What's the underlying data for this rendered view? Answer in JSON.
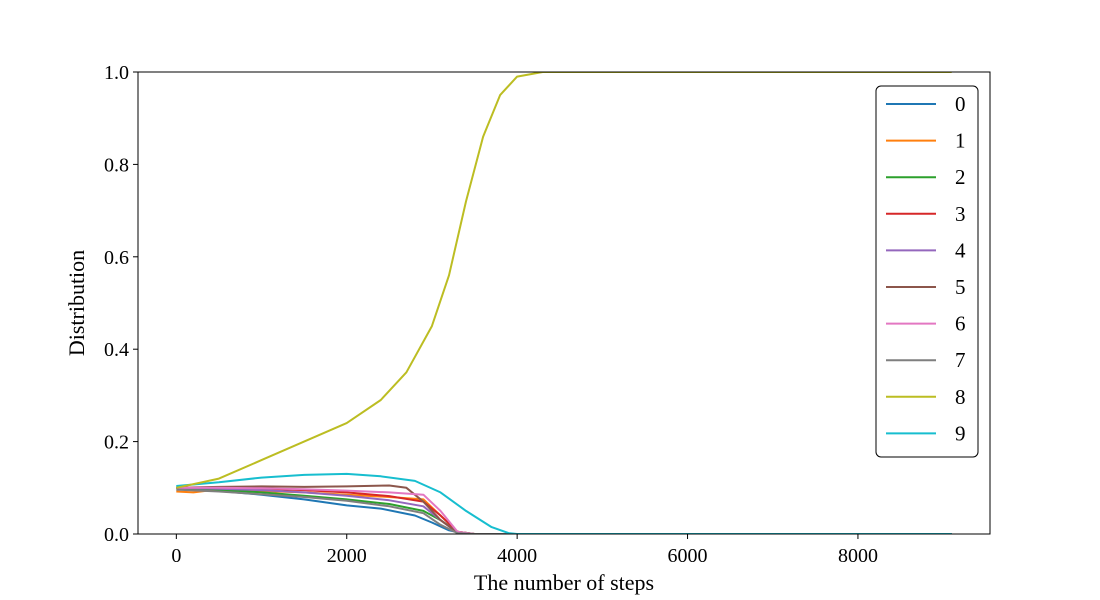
{
  "chart_data": {
    "type": "line",
    "title": "",
    "xlabel": "The number of steps",
    "ylabel": "Distribution",
    "xlim": [
      -450,
      9550
    ],
    "ylim": [
      0.0,
      1.0
    ],
    "xticks": [
      0,
      2000,
      4000,
      6000,
      8000
    ],
    "xtick_labels": [
      "0",
      "2000",
      "4000",
      "6000",
      "8000"
    ],
    "yticks": [
      0.0,
      0.2,
      0.4,
      0.6,
      0.8,
      1.0
    ],
    "ytick_labels": [
      "0.0",
      "0.2",
      "0.4",
      "0.6",
      "0.8",
      "1.0"
    ],
    "grid": false,
    "legend_position": "upper right",
    "x_max_step": 9100,
    "series": [
      {
        "name": "0",
        "color": "#1f77b4",
        "points": [
          [
            0,
            0.1
          ],
          [
            500,
            0.093
          ],
          [
            1000,
            0.085
          ],
          [
            1500,
            0.075
          ],
          [
            2000,
            0.062
          ],
          [
            2400,
            0.055
          ],
          [
            2800,
            0.04
          ],
          [
            3000,
            0.025
          ],
          [
            3200,
            0.008
          ],
          [
            3400,
            0.0
          ],
          [
            9100,
            0.0
          ]
        ]
      },
      {
        "name": "1",
        "color": "#ff7f0e",
        "points": [
          [
            0,
            0.092
          ],
          [
            200,
            0.09
          ],
          [
            500,
            0.097
          ],
          [
            1000,
            0.093
          ],
          [
            1500,
            0.09
          ],
          [
            2000,
            0.085
          ],
          [
            2500,
            0.08
          ],
          [
            2900,
            0.075
          ],
          [
            3100,
            0.04
          ],
          [
            3300,
            0.005
          ],
          [
            3500,
            0.0
          ],
          [
            9100,
            0.0
          ]
        ]
      },
      {
        "name": "2",
        "color": "#2ca02c",
        "points": [
          [
            0,
            0.1
          ],
          [
            500,
            0.096
          ],
          [
            1000,
            0.09
          ],
          [
            1500,
            0.083
          ],
          [
            2000,
            0.075
          ],
          [
            2500,
            0.065
          ],
          [
            2900,
            0.05
          ],
          [
            3100,
            0.03
          ],
          [
            3300,
            0.005
          ],
          [
            3500,
            0.0
          ],
          [
            9100,
            0.0
          ]
        ]
      },
      {
        "name": "3",
        "color": "#d62728",
        "points": [
          [
            0,
            0.1
          ],
          [
            500,
            0.1
          ],
          [
            1000,
            0.098
          ],
          [
            1500,
            0.095
          ],
          [
            2000,
            0.09
          ],
          [
            2500,
            0.082
          ],
          [
            2900,
            0.07
          ],
          [
            3100,
            0.04
          ],
          [
            3300,
            0.005
          ],
          [
            3500,
            0.0
          ],
          [
            9100,
            0.0
          ]
        ]
      },
      {
        "name": "4",
        "color": "#9467bd",
        "points": [
          [
            0,
            0.1
          ],
          [
            500,
            0.098
          ],
          [
            1000,
            0.095
          ],
          [
            1500,
            0.09
          ],
          [
            2000,
            0.083
          ],
          [
            2500,
            0.073
          ],
          [
            2900,
            0.06
          ],
          [
            3100,
            0.03
          ],
          [
            3300,
            0.003
          ],
          [
            3500,
            0.0
          ],
          [
            9100,
            0.0
          ]
        ]
      },
      {
        "name": "5",
        "color": "#8c564b",
        "points": [
          [
            0,
            0.1
          ],
          [
            500,
            0.102
          ],
          [
            1000,
            0.103
          ],
          [
            1500,
            0.102
          ],
          [
            2000,
            0.103
          ],
          [
            2500,
            0.105
          ],
          [
            2700,
            0.1
          ],
          [
            2900,
            0.07
          ],
          [
            3100,
            0.03
          ],
          [
            3300,
            0.003
          ],
          [
            3500,
            0.0
          ],
          [
            9100,
            0.0
          ]
        ]
      },
      {
        "name": "6",
        "color": "#e377c2",
        "points": [
          [
            0,
            0.1
          ],
          [
            500,
            0.1
          ],
          [
            1000,
            0.099
          ],
          [
            1500,
            0.097
          ],
          [
            2000,
            0.094
          ],
          [
            2500,
            0.09
          ],
          [
            2900,
            0.085
          ],
          [
            3100,
            0.05
          ],
          [
            3300,
            0.005
          ],
          [
            3500,
            0.0
          ],
          [
            9100,
            0.0
          ]
        ]
      },
      {
        "name": "7",
        "color": "#7f7f7f",
        "points": [
          [
            0,
            0.096
          ],
          [
            500,
            0.092
          ],
          [
            1000,
            0.086
          ],
          [
            1500,
            0.08
          ],
          [
            2000,
            0.072
          ],
          [
            2500,
            0.06
          ],
          [
            2900,
            0.045
          ],
          [
            3100,
            0.02
          ],
          [
            3300,
            0.002
          ],
          [
            3500,
            0.0
          ],
          [
            9100,
            0.0
          ]
        ]
      },
      {
        "name": "8",
        "color": "#bcbd22",
        "points": [
          [
            0,
            0.1
          ],
          [
            500,
            0.12
          ],
          [
            1000,
            0.16
          ],
          [
            1500,
            0.2
          ],
          [
            2000,
            0.24
          ],
          [
            2400,
            0.29
          ],
          [
            2700,
            0.35
          ],
          [
            3000,
            0.45
          ],
          [
            3200,
            0.56
          ],
          [
            3400,
            0.72
          ],
          [
            3600,
            0.86
          ],
          [
            3800,
            0.95
          ],
          [
            4000,
            0.99
          ],
          [
            4300,
            1.0
          ],
          [
            9100,
            1.0
          ]
        ]
      },
      {
        "name": "9",
        "color": "#17becf",
        "points": [
          [
            0,
            0.104
          ],
          [
            500,
            0.112
          ],
          [
            1000,
            0.122
          ],
          [
            1500,
            0.128
          ],
          [
            2000,
            0.13
          ],
          [
            2400,
            0.125
          ],
          [
            2800,
            0.115
          ],
          [
            3100,
            0.09
          ],
          [
            3400,
            0.05
          ],
          [
            3700,
            0.015
          ],
          [
            3900,
            0.002
          ],
          [
            4000,
            0.0
          ],
          [
            9100,
            0.0
          ]
        ]
      }
    ]
  }
}
